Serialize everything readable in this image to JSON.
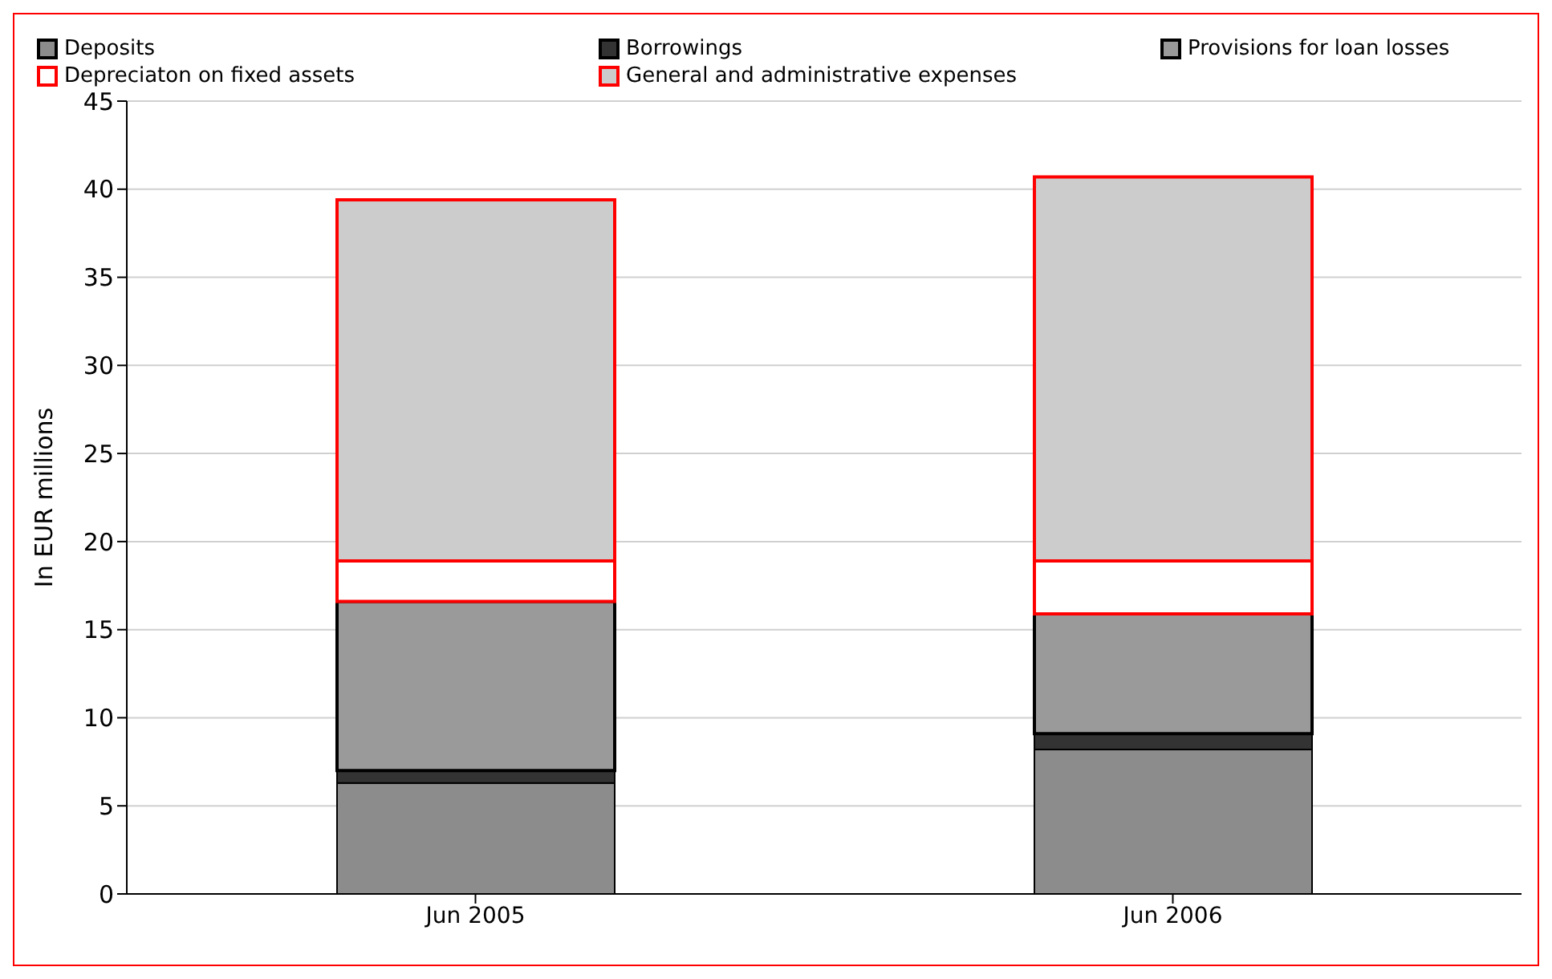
{
  "chart_data": {
    "type": "bar",
    "stacked": true,
    "categories": [
      "Jun 2005",
      "Jun 2006"
    ],
    "ylabel": "In EUR millions",
    "ylim": [
      0,
      45
    ],
    "yticks": [
      0,
      5,
      10,
      15,
      20,
      25,
      30,
      35,
      40,
      45
    ],
    "grid": "y",
    "legend": "top",
    "series": [
      {
        "name": "Deposits",
        "color": "#8c8c8c",
        "values": [
          6.3,
          8.2
        ]
      },
      {
        "name": "Borrowings",
        "color": "#333333",
        "values": [
          0.7,
          0.9
        ]
      },
      {
        "name": "Provisions for loan losses",
        "color": "#9a9a9a",
        "values": [
          9.6,
          6.8
        ]
      },
      {
        "name": "Depreciaton on fixed assets",
        "color": "#ffffff",
        "values": [
          2.3,
          3.0
        ]
      },
      {
        "name": "General and administrative expenses",
        "color": "#cccccc",
        "values": [
          20.5,
          21.8
        ]
      }
    ]
  }
}
